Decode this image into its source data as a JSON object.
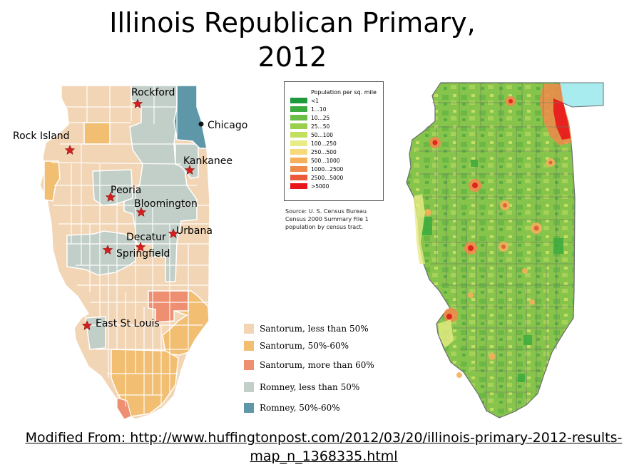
{
  "title_line1": "Illinois Republican Primary,",
  "title_line2": "2012",
  "cities": {
    "rockford": "Rockford",
    "chicago": "Chicago",
    "rock_island": "Rock Island",
    "kankakee": "Kankanee",
    "peoria": "Peoria",
    "bloomington": "Bloomington",
    "urbana": "Urbana",
    "decatur": "Decatur",
    "springfield": "Springfield",
    "east_st_louis": "East St Louis"
  },
  "population_legend": {
    "title": "Population per sq. mile",
    "items": [
      {
        "label": "<1",
        "color": "#1e9a3c"
      },
      {
        "label": "1...10",
        "color": "#3bab3d"
      },
      {
        "label": "10...25",
        "color": "#6cbf45"
      },
      {
        "label": "25...50",
        "color": "#99cf4c"
      },
      {
        "label": "50...100",
        "color": "#c3df5e"
      },
      {
        "label": "100...250",
        "color": "#e7ec85"
      },
      {
        "label": "250...500",
        "color": "#f6d97a"
      },
      {
        "label": "500...1000",
        "color": "#f5b05c"
      },
      {
        "label": "1000...2500",
        "color": "#f08a4a"
      },
      {
        "label": "2500...5000",
        "color": "#ea5a3a"
      },
      {
        "label": ">5000",
        "color": "#e8161b"
      }
    ]
  },
  "source": {
    "line1": "Source: U. S. Census Bureau",
    "line2": "Census 2000 Summary File 1",
    "line3": "population by census tract."
  },
  "result_legend": [
    {
      "label": "Santorum, less than 50%",
      "color": "#f2d5b5"
    },
    {
      "label": "Santorum, 50%-60%",
      "color": "#f1be72"
    },
    {
      "label": "Santorum, more than 60%",
      "color": "#ee8f72"
    },
    {
      "label": "Romney, less than 50%",
      "color": "#c2cfc8"
    },
    {
      "label": "Romney, 50%-60%",
      "color": "#5e98a8"
    }
  ],
  "credit": {
    "line1": "Modified From: http://www.huffingtonpost.com/2012/03/20/illinois-primary-2012-results-",
    "line2": "map_n_1368335.html"
  }
}
